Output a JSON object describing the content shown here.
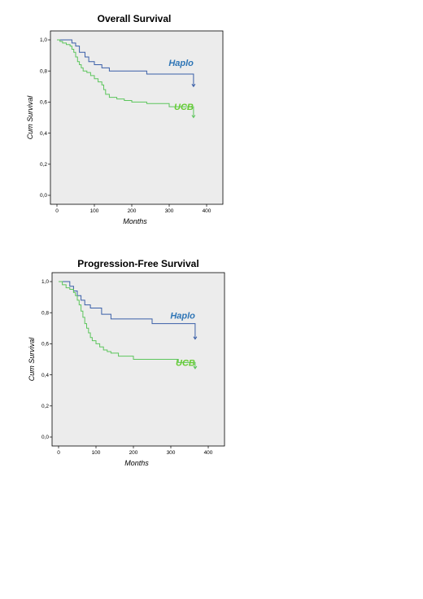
{
  "chart_data": [
    {
      "type": "line",
      "title": "Overall Survival",
      "xlabel": "Months",
      "ylabel": "Cum Survival",
      "xlim": [
        0,
        400
      ],
      "ylim": [
        0.0,
        1.0
      ],
      "x_ticks": [
        "0",
        "100",
        "200",
        "300",
        "400"
      ],
      "y_ticks": [
        "0,0",
        "0,2",
        "0,4",
        "0,6",
        "0,8",
        "1,0"
      ],
      "grid": false,
      "series": [
        {
          "name": "Haplo",
          "color": "#3a5fa8",
          "label_color": "#2e75b6",
          "x": [
            0,
            40,
            50,
            60,
            75,
            85,
            100,
            120,
            140,
            240,
            365
          ],
          "y": [
            1.0,
            0.98,
            0.96,
            0.92,
            0.89,
            0.86,
            0.84,
            0.82,
            0.8,
            0.78,
            0.78
          ],
          "end_x": 365,
          "end_y": 0.7
        },
        {
          "name": "UCB",
          "color": "#5cc55c",
          "label_color": "#66cc33",
          "x": [
            0,
            8,
            15,
            25,
            35,
            40,
            45,
            50,
            55,
            60,
            65,
            70,
            80,
            90,
            100,
            110,
            120,
            125,
            130,
            140,
            160,
            180,
            200,
            240,
            300,
            365
          ],
          "y": [
            1.0,
            0.99,
            0.98,
            0.97,
            0.96,
            0.94,
            0.92,
            0.89,
            0.86,
            0.84,
            0.82,
            0.8,
            0.79,
            0.77,
            0.75,
            0.73,
            0.71,
            0.68,
            0.65,
            0.63,
            0.62,
            0.61,
            0.6,
            0.59,
            0.57,
            0.55
          ],
          "end_x": 365,
          "end_y": 0.5
        }
      ]
    },
    {
      "type": "line",
      "title": "Progression-Free Survival",
      "xlabel": "Months",
      "ylabel": "Cum Survival",
      "xlim": [
        0,
        400
      ],
      "ylim": [
        0.0,
        1.0
      ],
      "x_ticks": [
        "0",
        "100",
        "200",
        "300",
        "400"
      ],
      "y_ticks": [
        "0,0",
        "0,2",
        "0,4",
        "0,6",
        "0,8",
        "1,0"
      ],
      "grid": false,
      "series": [
        {
          "name": "Haplo",
          "color": "#3a5fa8",
          "label_color": "#2e75b6",
          "x": [
            0,
            30,
            40,
            50,
            60,
            70,
            85,
            115,
            140,
            250,
            365
          ],
          "y": [
            1.0,
            0.97,
            0.94,
            0.91,
            0.88,
            0.85,
            0.83,
            0.79,
            0.76,
            0.73,
            0.73
          ],
          "end_x": 365,
          "end_y": 0.63
        },
        {
          "name": "UCB",
          "color": "#5cc55c",
          "label_color": "#66cc33",
          "x": [
            0,
            10,
            20,
            30,
            40,
            45,
            50,
            55,
            60,
            65,
            70,
            75,
            80,
            85,
            90,
            100,
            110,
            120,
            130,
            140,
            160,
            200,
            260,
            320,
            365
          ],
          "y": [
            1.0,
            0.98,
            0.96,
            0.95,
            0.93,
            0.91,
            0.88,
            0.85,
            0.81,
            0.77,
            0.73,
            0.7,
            0.67,
            0.64,
            0.62,
            0.6,
            0.58,
            0.56,
            0.55,
            0.54,
            0.52,
            0.5,
            0.5,
            0.48,
            0.48
          ],
          "end_x": 365,
          "end_y": 0.44
        }
      ]
    }
  ]
}
